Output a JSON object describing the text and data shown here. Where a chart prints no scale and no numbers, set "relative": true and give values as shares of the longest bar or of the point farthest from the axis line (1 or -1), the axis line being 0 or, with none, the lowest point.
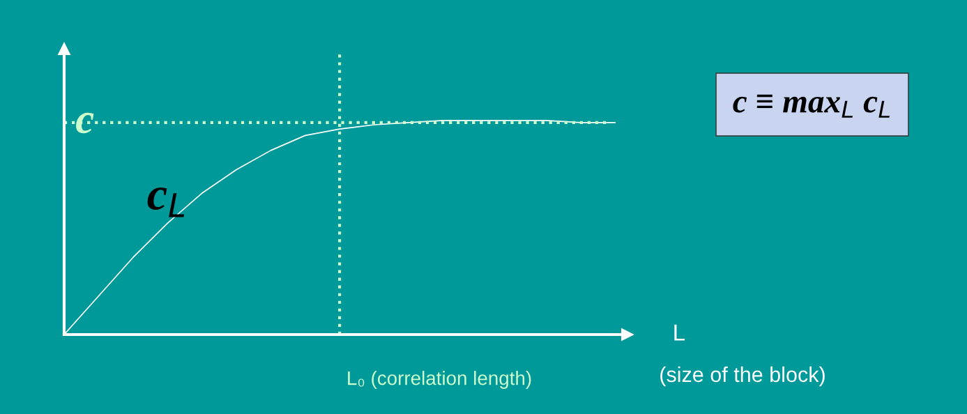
{
  "chart_data": {
    "type": "line",
    "relative": true,
    "categories": [
      null,
      null,
      null,
      null,
      null,
      null,
      null,
      null,
      null,
      null,
      null,
      null,
      null,
      null,
      null,
      null,
      null
    ],
    "series": [
      {
        "color": "#ffffff",
        "values": [
          0,
          0.18,
          0.36,
          0.52,
          0.66,
          0.77,
          0.86,
          0.93,
          0.96,
          0.98,
          0.99,
          1,
          1,
          1,
          1,
          0.99,
          0.99
        ]
      }
    ],
    "ref_lines": [
      {
        "axis": "y",
        "value": 0.99,
        "label": "c",
        "color": "#ccffcc",
        "line_style": "dotted"
      }
    ],
    "xlabel": "L",
    "annotations": [
      "c$_{L}$",
      "c ≡ max$_{L}$ c$_{L}$",
      "(size of the block)",
      "L₀ (correlation length)"
    ],
    "grid": false,
    "legend": false,
    "marker": "none",
    "line_style": "solid"
  }
}
